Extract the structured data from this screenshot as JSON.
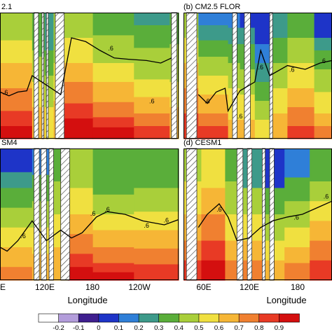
{
  "chart_data": [
    {
      "type": "heatmap",
      "panel": "a",
      "title": "2.1",
      "x_ticks": [
        "E",
        "120E",
        "180",
        "120W"
      ],
      "xlabel": "",
      "contour_labels": [
        ".6",
        ".6",
        ".6"
      ]
    },
    {
      "type": "heatmap",
      "panel": "b",
      "title": "(b) CM2.5 FLOR",
      "x_ticks": [],
      "xlabel": "",
      "contour_labels": [
        ".6",
        ".6",
        ".6",
        ".6",
        ".6"
      ]
    },
    {
      "type": "heatmap",
      "panel": "c",
      "title": "SM4",
      "x_ticks": [
        "E",
        "120E",
        "180",
        "120W"
      ],
      "xlabel": "Longitude",
      "contour_labels": [
        ".6",
        ".6",
        ".6",
        ".6",
        ".6"
      ]
    },
    {
      "type": "heatmap",
      "panel": "d",
      "title": "(d) CESM1",
      "x_ticks": [
        "60E",
        "120E",
        "180"
      ],
      "xlabel": "Longitude",
      "contour_labels": [
        ".6",
        ".6",
        ".6"
      ]
    }
  ],
  "colorbar": {
    "labels": [
      "-0.2",
      "-0.1",
      "0",
      "0.1",
      "0.2",
      "0.3",
      "0.4",
      "0.5",
      "0.6",
      "0.7",
      "0.8",
      "0.9"
    ],
    "colors": [
      "#ffffff",
      "#b39ddb",
      "#3f1f8f",
      "#1e34c8",
      "#2f7fd8",
      "#3d9a8a",
      "#5aae3a",
      "#a9cf3a",
      "#f0e040",
      "#f6b636",
      "#f08030",
      "#e83a25",
      "#d40f0f"
    ]
  },
  "palette": {
    "hatch_stroke": "#333333",
    "contour": "#000000"
  }
}
